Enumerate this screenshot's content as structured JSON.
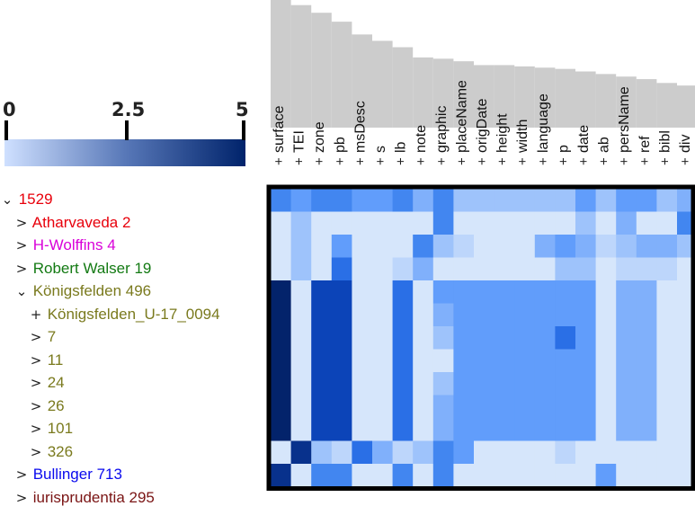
{
  "colorbar": {
    "ticks": [
      "0",
      "2.5",
      "5"
    ],
    "colors": {
      "low": "#cfe0ff",
      "mid": "#5878b8",
      "high": "#00236b"
    }
  },
  "columns": [
    "surface",
    "TEI",
    "zone",
    "pb",
    "msDesc",
    "s",
    "lb",
    "note",
    "graphic",
    "placeName",
    "origDate",
    "height",
    "width",
    "language",
    "p",
    "date",
    "ab",
    "persName",
    "ref",
    "bibl",
    "div"
  ],
  "column_expander_label": "+",
  "column_bars": [
    1.0,
    0.96,
    0.9,
    0.83,
    0.73,
    0.68,
    0.63,
    0.55,
    0.54,
    0.52,
    0.49,
    0.49,
    0.48,
    0.47,
    0.46,
    0.44,
    0.42,
    0.4,
    0.38,
    0.35,
    0.33
  ],
  "tree": [
    {
      "label": "1529",
      "toggle": "⌄",
      "level": 0,
      "color": "#e8000b"
    },
    {
      "label": "Atharvaveda 2",
      "toggle": ">",
      "level": 1,
      "color": "#e8000b"
    },
    {
      "label": "H-Wolffins 4",
      "toggle": ">",
      "level": 1,
      "color": "#d900d9"
    },
    {
      "label": "Robert Walser 19",
      "toggle": ">",
      "level": 1,
      "color": "#137a13"
    },
    {
      "label": "Königsfelden 496",
      "toggle": "⌄",
      "level": 1,
      "color": "#7a7a1e"
    },
    {
      "label": "Königsfelden_U-17_0094",
      "toggle": "+",
      "level": 2,
      "color": "#7a7a1e"
    },
    {
      "label": "7",
      "toggle": ">",
      "level": 2,
      "color": "#7a7a1e"
    },
    {
      "label": "11",
      "toggle": ">",
      "level": 2,
      "color": "#7a7a1e"
    },
    {
      "label": "24",
      "toggle": ">",
      "level": 2,
      "color": "#7a7a1e"
    },
    {
      "label": "26",
      "toggle": ">",
      "level": 2,
      "color": "#7a7a1e"
    },
    {
      "label": "101",
      "toggle": ">",
      "level": 2,
      "color": "#7a7a1e"
    },
    {
      "label": "326",
      "toggle": ">",
      "level": 2,
      "color": "#7a7a1e"
    },
    {
      "label": "Bullinger 713",
      "toggle": ">",
      "level": 1,
      "color": "#0a0aee"
    },
    {
      "label": "iurisprudentia 295",
      "toggle": ">",
      "level": 1,
      "color": "#7a1414"
    }
  ],
  "heatmap_palette": [
    "#d6e6fb",
    "#bdd6fb",
    "#9ec3fb",
    "#80b0fb",
    "#619dfb",
    "#4286f0",
    "#2a6fe6",
    "#1858d4",
    "#0c44b8",
    "#08318c",
    "#03236b"
  ],
  "heatmap_values": [
    [
      5,
      4,
      5,
      5,
      4,
      4,
      5,
      3,
      5,
      2,
      2,
      2,
      2,
      2,
      2,
      4,
      2,
      4,
      4,
      2,
      3
    ],
    [
      0,
      2,
      0,
      0,
      0,
      0,
      0,
      0,
      5,
      0,
      0,
      0,
      0,
      0,
      0,
      2,
      0,
      3,
      0,
      0,
      5
    ],
    [
      0,
      2,
      0,
      4,
      0,
      0,
      0,
      5,
      2,
      1,
      0,
      0,
      0,
      3,
      4,
      3,
      1,
      2,
      3,
      3,
      2
    ],
    [
      0,
      2,
      0,
      6,
      0,
      0,
      1,
      3,
      0,
      0,
      0,
      0,
      0,
      0,
      2,
      2,
      0,
      1,
      1,
      1,
      0
    ],
    [
      10,
      0,
      8,
      8,
      0,
      0,
      6,
      0,
      4,
      4,
      4,
      4,
      4,
      4,
      4,
      4,
      0,
      3,
      3,
      0,
      0
    ],
    [
      10,
      0,
      8,
      8,
      0,
      0,
      6,
      0,
      3,
      4,
      4,
      4,
      4,
      4,
      4,
      4,
      0,
      3,
      3,
      0,
      0
    ],
    [
      10,
      0,
      8,
      8,
      0,
      0,
      6,
      0,
      2,
      4,
      4,
      4,
      4,
      4,
      6,
      4,
      0,
      3,
      3,
      0,
      0
    ],
    [
      10,
      0,
      8,
      8,
      0,
      0,
      6,
      0,
      0,
      4,
      4,
      4,
      4,
      4,
      4,
      4,
      0,
      3,
      3,
      0,
      0
    ],
    [
      10,
      0,
      8,
      8,
      0,
      0,
      6,
      0,
      2,
      4,
      4,
      4,
      4,
      4,
      4,
      4,
      0,
      3,
      3,
      0,
      0
    ],
    [
      10,
      0,
      8,
      8,
      0,
      0,
      6,
      0,
      3,
      4,
      4,
      4,
      4,
      4,
      4,
      4,
      0,
      3,
      3,
      0,
      0
    ],
    [
      10,
      0,
      8,
      8,
      0,
      0,
      6,
      0,
      3,
      4,
      4,
      4,
      4,
      4,
      4,
      4,
      0,
      3,
      3,
      0,
      0
    ],
    [
      0,
      9,
      2,
      1,
      6,
      3,
      1,
      2,
      5,
      4,
      0,
      0,
      0,
      0,
      1,
      0,
      0,
      0,
      0,
      0,
      0
    ],
    [
      9,
      0,
      5,
      5,
      0,
      0,
      5,
      0,
      5,
      0,
      0,
      0,
      0,
      0,
      0,
      0,
      4,
      0,
      0,
      0,
      0
    ]
  ]
}
